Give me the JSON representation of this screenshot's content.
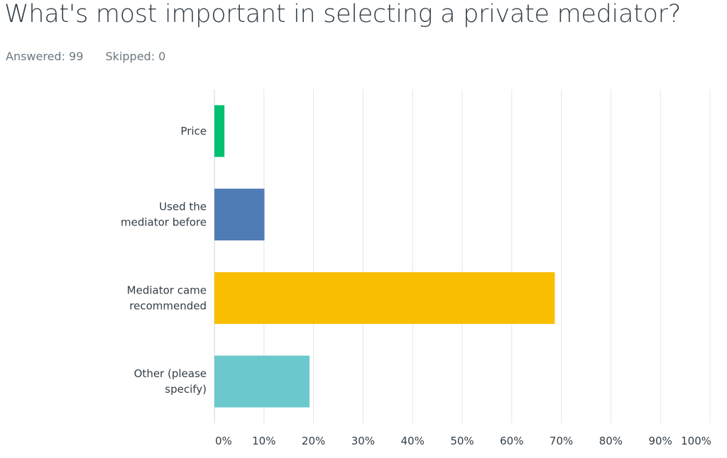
{
  "header": {
    "title": "What's most important in selecting a private mediator?",
    "answered": "Answered: 99",
    "skipped": "Skipped: 0"
  },
  "chart_data": {
    "type": "bar",
    "orientation": "horizontal",
    "categories": [
      [
        "Price"
      ],
      [
        "Used the",
        "mediator before"
      ],
      [
        "Mediator came",
        "recommended"
      ],
      [
        "Other (please",
        "specify)"
      ]
    ],
    "values": [
      2.02,
      10.1,
      68.69,
      19.19
    ],
    "colors": [
      "#00bf6f",
      "#507cb6",
      "#f9be00",
      "#6bc8cd"
    ],
    "xticks": [
      "0%",
      "10%",
      "20%",
      "30%",
      "40%",
      "50%",
      "60%",
      "70%",
      "80%",
      "90%",
      "100%"
    ],
    "xlim": [
      0,
      100
    ],
    "grid": true
  }
}
